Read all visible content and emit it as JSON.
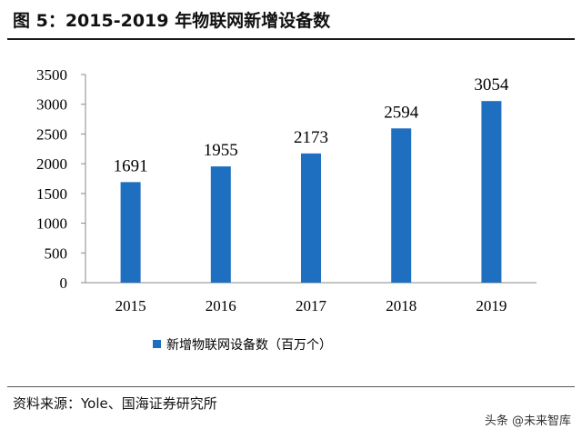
{
  "header": {
    "title": "图 5：2015-2019 年物联网新增设备数"
  },
  "chart_data": {
    "type": "bar",
    "title": "图 5：2015-2019 年物联网新增设备数",
    "categories": [
      "2015",
      "2016",
      "2017",
      "2018",
      "2019"
    ],
    "series": [
      {
        "name": "新增物联网设备数（百万个）",
        "values": [
          1691,
          1955,
          2173,
          2594,
          3054
        ],
        "color": "#1f6fc0"
      }
    ],
    "ylim": [
      0,
      3500
    ],
    "yticks": [
      "0",
      "500",
      "1000",
      "1500",
      "2000",
      "2500",
      "3000",
      "3500"
    ],
    "xlabel": "",
    "ylabel": "",
    "grid": false,
    "legend_position": "bottom"
  },
  "footer": {
    "source": "资料来源：Yole、国海证券研究所",
    "watermark": "头条 @未来智库"
  }
}
